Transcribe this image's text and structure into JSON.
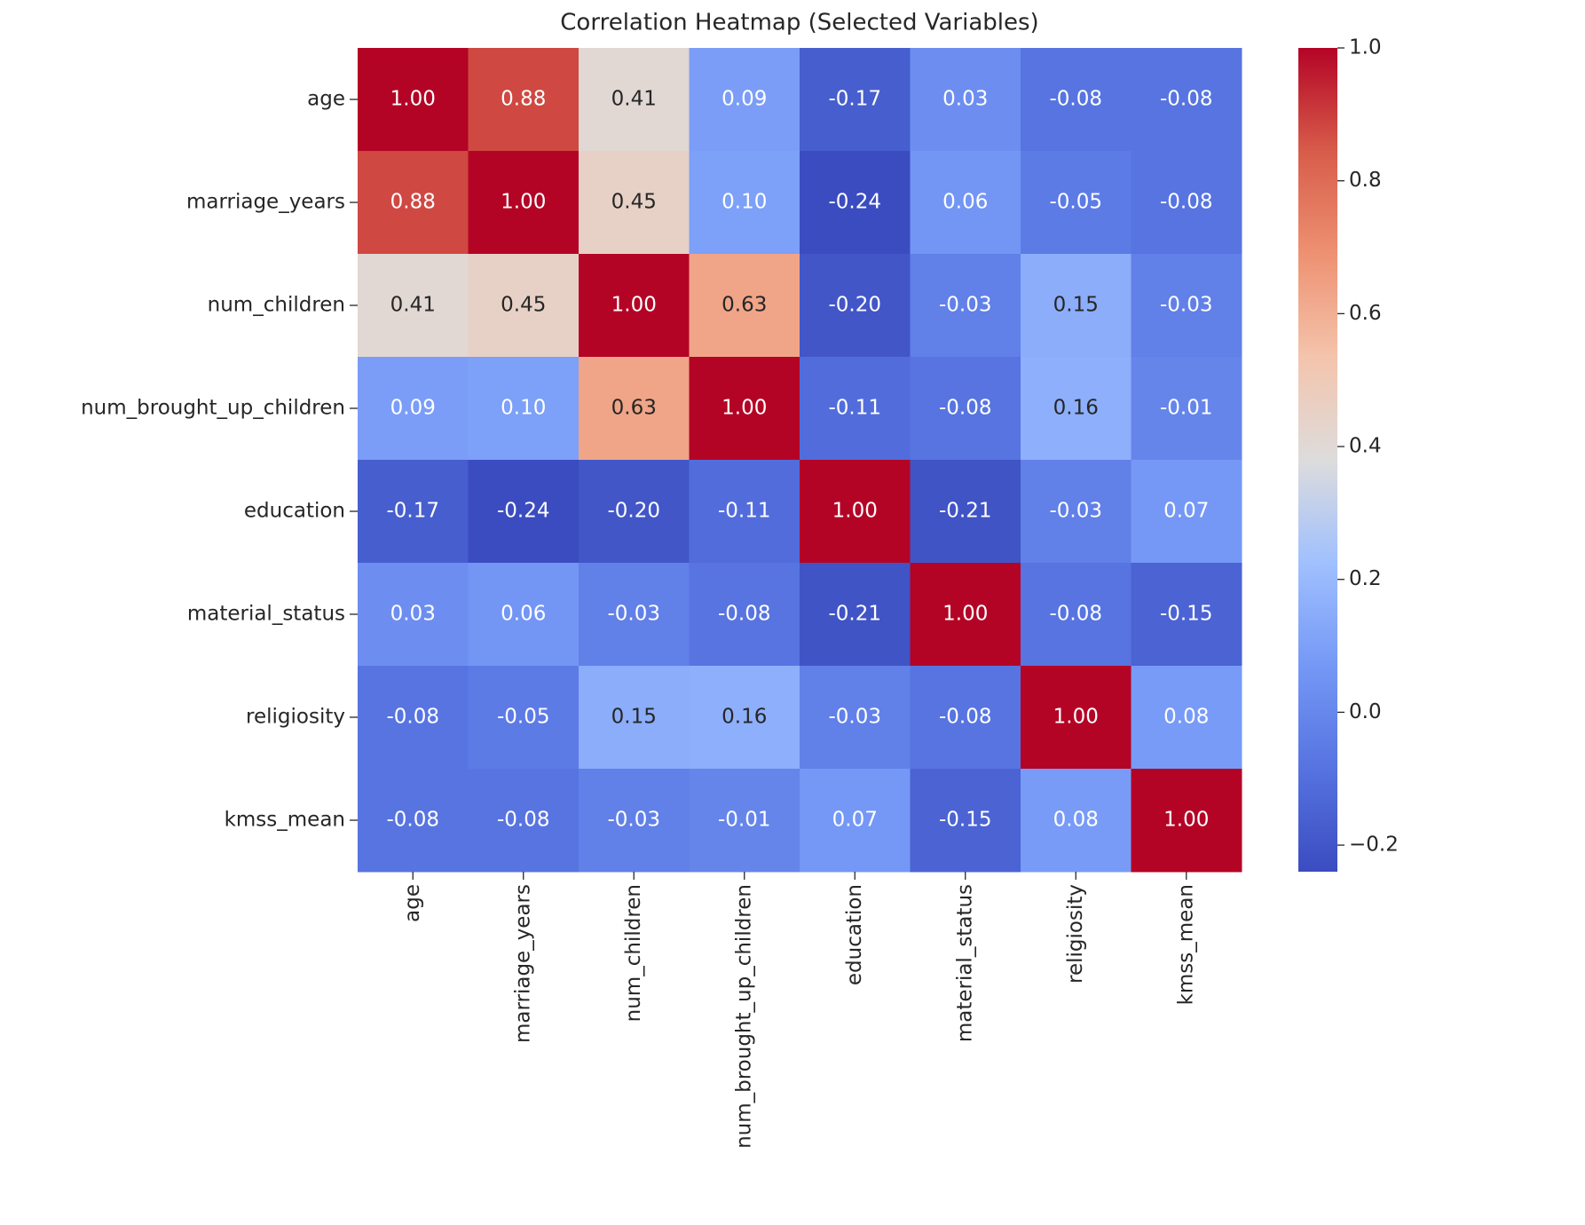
{
  "chart_data": {
    "type": "heatmap",
    "title": "Correlation Heatmap (Selected Variables)",
    "x_categories": [
      "age",
      "marriage_years",
      "num_children",
      "num_brought_up_children",
      "education",
      "material_status",
      "religiosity",
      "kmss_mean"
    ],
    "y_categories": [
      "age",
      "marriage_years",
      "num_children",
      "num_brought_up_children",
      "education",
      "material_status",
      "religiosity",
      "kmss_mean"
    ],
    "values": [
      [
        1.0,
        0.88,
        0.41,
        0.09,
        -0.17,
        0.03,
        -0.08,
        -0.08
      ],
      [
        0.88,
        1.0,
        0.45,
        0.1,
        -0.24,
        0.06,
        -0.05,
        -0.08
      ],
      [
        0.41,
        0.45,
        1.0,
        0.63,
        -0.2,
        -0.03,
        0.15,
        -0.03
      ],
      [
        0.09,
        0.1,
        0.63,
        1.0,
        -0.11,
        -0.08,
        0.16,
        -0.01
      ],
      [
        -0.17,
        -0.24,
        -0.2,
        -0.11,
        1.0,
        -0.21,
        -0.03,
        0.07
      ],
      [
        0.03,
        0.06,
        -0.03,
        -0.08,
        -0.21,
        1.0,
        -0.08,
        -0.15
      ],
      [
        -0.08,
        -0.05,
        0.15,
        0.16,
        -0.03,
        -0.08,
        1.0,
        0.08
      ],
      [
        -0.08,
        -0.08,
        -0.03,
        -0.01,
        0.07,
        -0.15,
        0.08,
        1.0
      ]
    ],
    "value_labels": [
      [
        "1.00",
        "0.88",
        "0.41",
        "0.09",
        "-0.17",
        "0.03",
        "-0.08",
        "-0.08"
      ],
      [
        "0.88",
        "1.00",
        "0.45",
        "0.10",
        "-0.24",
        "0.06",
        "-0.05",
        "-0.08"
      ],
      [
        "0.41",
        "0.45",
        "1.00",
        "0.63",
        "-0.20",
        "-0.03",
        "0.15",
        "-0.03"
      ],
      [
        "0.09",
        "0.10",
        "0.63",
        "1.00",
        "-0.11",
        "-0.08",
        "0.16",
        "-0.01"
      ],
      [
        "-0.17",
        "-0.24",
        "-0.20",
        "-0.11",
        "1.00",
        "-0.21",
        "-0.03",
        "0.07"
      ],
      [
        "0.03",
        "0.06",
        "-0.03",
        "-0.08",
        "-0.21",
        "1.00",
        "-0.08",
        "-0.15"
      ],
      [
        "-0.08",
        "-0.05",
        "0.15",
        "0.16",
        "-0.03",
        "-0.08",
        "1.00",
        "0.08"
      ],
      [
        "-0.08",
        "-0.08",
        "-0.03",
        "-0.01",
        "0.07",
        "-0.15",
        "0.08",
        "1.00"
      ]
    ],
    "colormap": "coolwarm",
    "clim": [
      -0.24,
      1.0
    ],
    "colorbar_ticks": [
      {
        "value": -0.2,
        "label": "−0.2"
      },
      {
        "value": 0,
        "label": "0.0"
      },
      0.2,
      0.4,
      0.6,
      0.8,
      {
        "value": 1.0,
        "label": "1.0"
      }
    ]
  }
}
